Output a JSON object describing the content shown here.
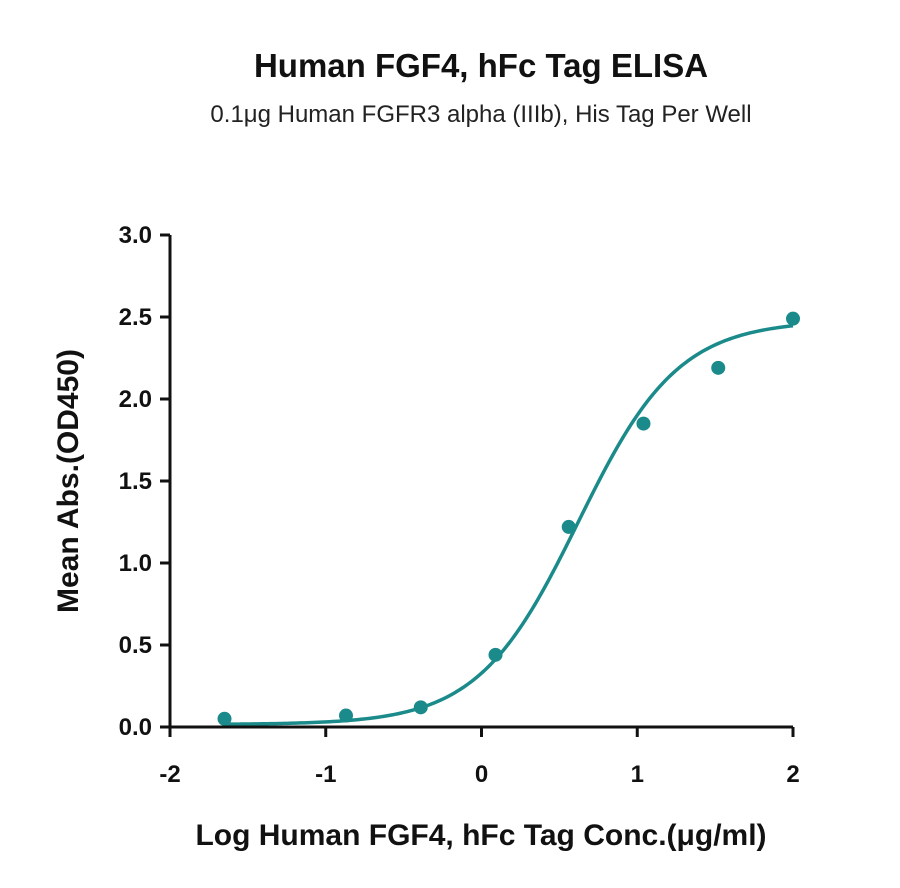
{
  "colors": {
    "series": "#1b8a8a",
    "axis": "#111111"
  },
  "chart_data": {
    "type": "scatter",
    "title": "Human FGF4, hFc Tag ELISA",
    "subtitle": "0.1μg Human FGFR3 alpha (IIIb), His Tag Per Well",
    "xlabel": "Log Human FGF4, hFc Tag Conc.(μg/ml)",
    "ylabel": "Mean Abs.(OD450)",
    "xlim": [
      -2,
      2
    ],
    "ylim": [
      0,
      3
    ],
    "x_ticks": [
      "-2",
      "-1",
      "0",
      "1",
      "2"
    ],
    "y_ticks": [
      "0.0",
      "0.5",
      "1.0",
      "1.5",
      "2.0",
      "2.5",
      "3.0"
    ],
    "grid": false,
    "legend": "none",
    "fit": "four-parameter logistic",
    "series": [
      {
        "x": [
          -1.65,
          -0.87,
          -0.39,
          0.09,
          0.56,
          1.04,
          1.52,
          2.0
        ],
        "y": [
          0.05,
          0.07,
          0.12,
          0.44,
          1.22,
          1.85,
          2.19,
          2.49
        ]
      }
    ]
  }
}
